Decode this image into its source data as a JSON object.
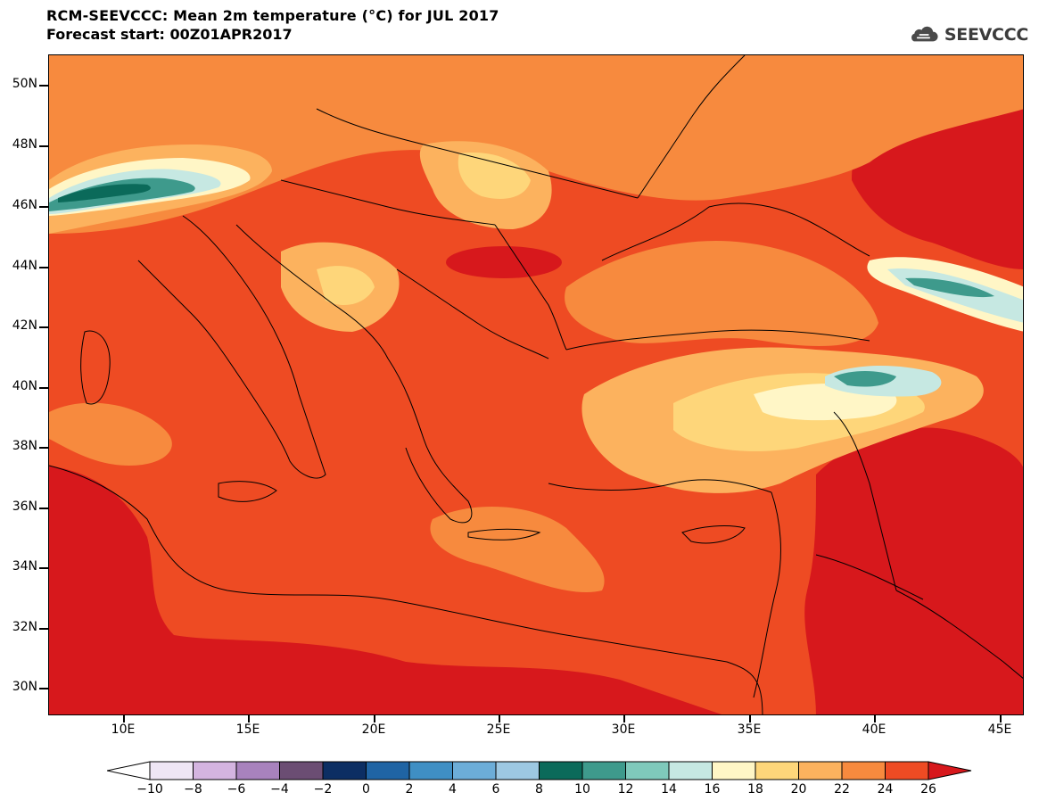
{
  "title": "RCM-SEEVCCC: Mean 2m temperature (°C) for JUL 2017",
  "subtitle": "Forecast start: 00Z01APR2017",
  "logo_text": "SEEVCCC",
  "lat_labels": [
    "50N",
    "48N",
    "46N",
    "44N",
    "42N",
    "40N",
    "38N",
    "36N",
    "34N",
    "32N",
    "30N"
  ],
  "lon_labels": [
    "10E",
    "15E",
    "20E",
    "25E",
    "30E",
    "35E",
    "40E",
    "45E"
  ],
  "colorbar": {
    "labels": [
      "−10",
      "−8",
      "−6",
      "−4",
      "−2",
      "0",
      "2",
      "4",
      "6",
      "8",
      "10",
      "12",
      "14",
      "16",
      "18",
      "20",
      "22",
      "24",
      "26"
    ],
    "colors": [
      "#ffffff",
      "#efe6f5",
      "#d4b4e0",
      "#a882bd",
      "#6b4d73",
      "#0c2e63",
      "#1f64a4",
      "#3f8fc4",
      "#6cadd8",
      "#9dc8e2",
      "#0b6a5a",
      "#3e9a8c",
      "#7fc9bb",
      "#c6e8e2",
      "#fff6c6",
      "#fed67a",
      "#fcb25e",
      "#f78a3e",
      "#ee4b23",
      "#d7181c"
    ]
  }
}
